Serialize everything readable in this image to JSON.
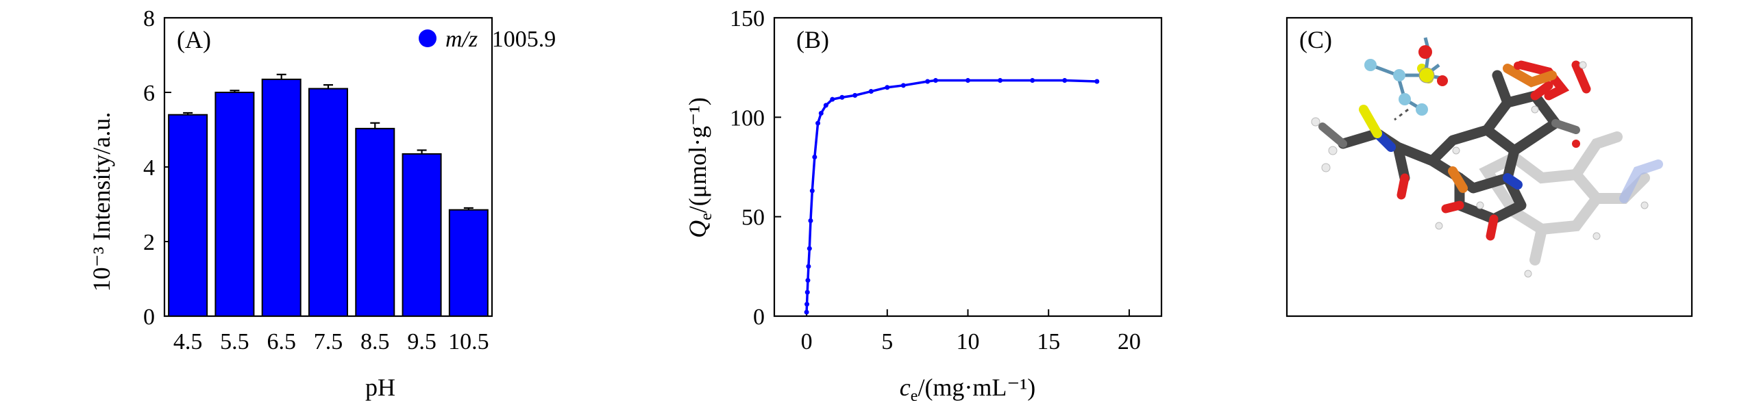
{
  "chart_data": [
    {
      "panel": "(A)",
      "type": "bar",
      "categories": [
        "4.5",
        "5.5",
        "6.5",
        "7.5",
        "8.5",
        "9.5",
        "10.5"
      ],
      "series": [
        {
          "name": "m/z 1005.9",
          "values": [
            5.4,
            6.0,
            6.35,
            6.1,
            5.03,
            4.35,
            2.85
          ],
          "errors": [
            0.05,
            0.05,
            0.13,
            0.1,
            0.15,
            0.1,
            0.05
          ]
        }
      ],
      "legend": {
        "prefix_italic": "m/z",
        "value": "1005.9",
        "position": "top-right"
      },
      "xlabel": "pH",
      "ylabel": "10⁻³ Intensity/a.u.",
      "ylim": [
        0,
        8
      ],
      "yticks": [
        "0",
        "2",
        "4",
        "6",
        "8"
      ],
      "grid": false,
      "color": "#0000ff"
    },
    {
      "panel": "(B)",
      "type": "line",
      "x": [
        0,
        0.02,
        0.05,
        0.08,
        0.12,
        0.18,
        0.25,
        0.35,
        0.5,
        0.7,
        0.9,
        1.2,
        1.6,
        2.2,
        3.0,
        4.0,
        5.0,
        6.0,
        7.5,
        8.0,
        10.0,
        12.0,
        14.0,
        16.0,
        18.0
      ],
      "y": [
        2,
        6,
        12,
        18,
        25,
        34,
        48,
        63,
        80,
        97,
        102,
        106,
        109,
        110,
        111,
        113,
        115,
        116,
        118,
        118.5,
        118.5,
        118.5,
        118.5,
        118.5,
        118
      ],
      "xlabel": "c_e/(mg·mL⁻¹)",
      "ylabel": "Q_e/(μmol·g⁻¹)",
      "xlim": [
        -2,
        22
      ],
      "ylim": [
        0,
        150
      ],
      "xticks": [
        "0",
        "5",
        "10",
        "15",
        "20"
      ],
      "yticks": [
        "0",
        "50",
        "100",
        "150"
      ],
      "grid": false,
      "color": "#0000ff"
    },
    {
      "panel": "(C)",
      "type": "image",
      "description_icon": "molecular-structure-icon"
    }
  ],
  "labels": {
    "A": "(A)",
    "B": "(B)",
    "C": "(C)",
    "a_xlabel": "pH",
    "a_ylabel": "10⁻³ Intensity/a.u.",
    "a_legend_italic": "m/z",
    "a_legend_value": "1005.9",
    "b_xlabel_var": "c",
    "b_xlabel_sub": "e",
    "b_xlabel_unit": "/(mg·mL⁻¹)",
    "b_ylabel_var": "Q",
    "b_ylabel_sub": "e",
    "b_ylabel_unit": "/(μmol·g⁻¹)"
  }
}
